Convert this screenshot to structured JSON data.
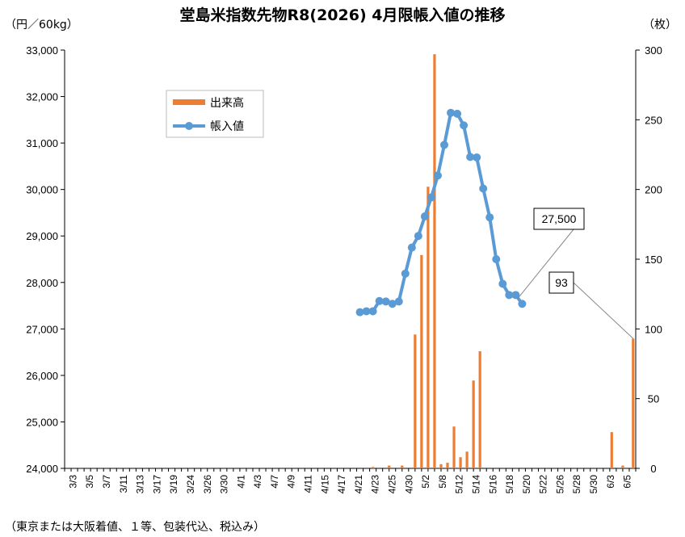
{
  "chart_data": {
    "type": "bar+line",
    "title": "堂島米指数先物R8(2026) 4月限帳入値の推移",
    "y_left_unit": "（円／60kg）",
    "y_right_unit": "（枚）",
    "footnote": "（東京または大阪着値、１等、包装代込、税込み）",
    "y_left_ticks": [
      "24,000",
      "25,000",
      "26,000",
      "27,000",
      "28,000",
      "29,000",
      "30,000",
      "31,000",
      "32,000",
      "33,000"
    ],
    "y_right_ticks": [
      "0",
      "50",
      "100",
      "150",
      "200",
      "250",
      "300"
    ],
    "ylim_left": [
      24000,
      33000
    ],
    "ylim_right": [
      0,
      300
    ],
    "x_tick_labels": [
      "3/3",
      "3/5",
      "3/7",
      "3/11",
      "3/13",
      "3/17",
      "3/19",
      "3/24",
      "3/26",
      "3/30",
      "4/1",
      "4/3",
      "4/7",
      "4/9",
      "4/11",
      "4/15",
      "4/17",
      "4/21",
      "4/23",
      "4/25",
      "4/30",
      "5/2",
      "5/8",
      "5/12",
      "5/14",
      "5/16",
      "5/18",
      "5/20",
      "5/22",
      "5/26",
      "5/28",
      "5/30",
      "6/3",
      "6/5"
    ],
    "series": [
      {
        "name": "出来高",
        "type": "bar",
        "axis": "right",
        "color": "#ED7D31",
        "x": [
          45.5,
          46.5,
          47.5,
          49,
          50,
          51,
          52,
          53,
          54,
          55,
          56,
          57,
          58,
          59,
          60,
          61,
          62,
          63,
          64,
          65,
          66,
          67,
          68,
          69,
          70,
          71,
          72,
          73,
          74,
          75,
          76,
          77,
          78,
          79,
          80,
          81,
          82
        ],
        "values": [
          0,
          0,
          1,
          0,
          2,
          0,
          2,
          0,
          96,
          153,
          202,
          297,
          3,
          4,
          30,
          8,
          12,
          63,
          84,
          0,
          0,
          0,
          0,
          0,
          0,
          0,
          0,
          0,
          0,
          0,
          0,
          0,
          0,
          0,
          0,
          0,
          0
        ]
      },
      {
        "name": "帳入値",
        "type": "line",
        "axis": "left",
        "color": "#5B9BD5",
        "x": [
          45.5,
          46.5,
          47.5,
          48.5,
          49.5,
          50.5,
          51.5,
          52.5,
          53.5,
          54.5,
          55.5,
          56.5,
          57.5,
          58.5,
          59.5,
          60.5,
          61.5,
          62.5,
          63.5,
          64.5,
          65.5,
          66.5,
          67.5,
          68.5,
          69.5,
          70.5,
          71.5
        ],
        "values": [
          27360,
          27380,
          27380,
          27600,
          27590,
          27540,
          27590,
          28190,
          28750,
          29000,
          29420,
          29830,
          30300,
          30960,
          31650,
          31630,
          31380,
          30700,
          30690,
          30020,
          29400,
          28500,
          27970,
          27730,
          27730,
          27540,
          null
        ]
      }
    ],
    "extra_bars_note": "",
    "callouts": [
      {
        "text": "27,500",
        "target_x": 85.5,
        "target_value": 27500,
        "axis": "left"
      },
      {
        "text": "93",
        "target_x": 87.5,
        "target_value": 93,
        "axis": "right"
      }
    ],
    "legend": {
      "position": "top-left",
      "items": [
        "出来高",
        "帳入値"
      ]
    },
    "grid": false
  }
}
